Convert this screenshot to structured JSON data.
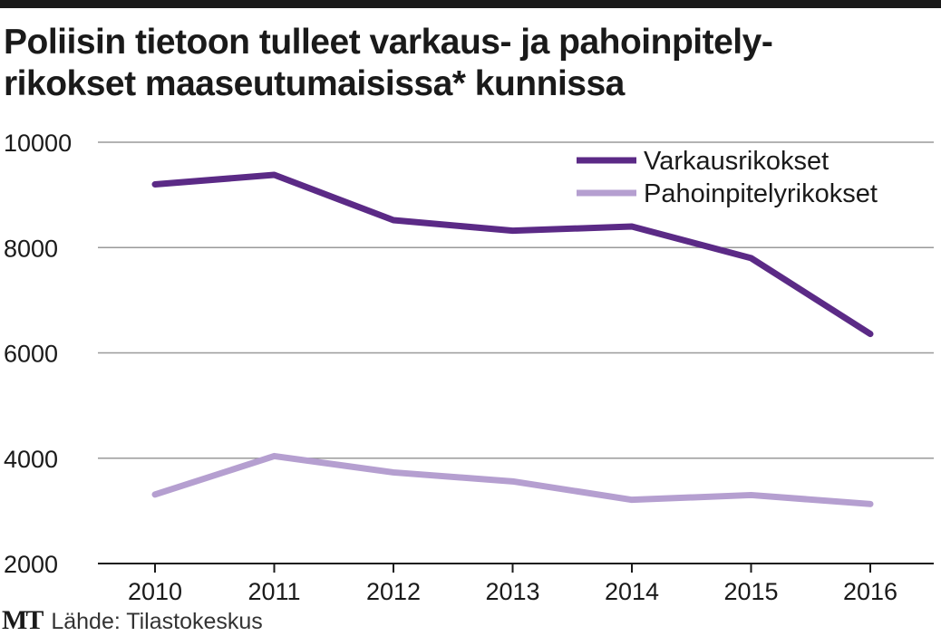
{
  "chart_data": {
    "type": "line",
    "title": "Poliisin tietoon tulleet varkaus- ja pahoinpitelyrikokset maaseutumaisissa* kunnissa",
    "title_lines": [
      "Poliisin tietoon tulleet varkaus- ja pahoinpitely-",
      "rikokset maaseutumaisissa* kunnissa"
    ],
    "xlabel": "",
    "ylabel": "",
    "x": [
      "2010",
      "2011",
      "2012",
      "2013",
      "2014",
      "2015",
      "2016"
    ],
    "ylim": [
      2000,
      10000
    ],
    "yticks": [
      "2000",
      "4000",
      "6000",
      "8000",
      "10000"
    ],
    "grid": true,
    "legend_position": "top-right",
    "series": [
      {
        "name": "Varkausrikokset",
        "color": "#5b2a86",
        "values": [
          9200,
          9380,
          8520,
          8320,
          8400,
          7800,
          6360
        ]
      },
      {
        "name": "Pahoinpitelyrikokset",
        "color": "#b59fd0",
        "values": [
          3310,
          4040,
          3730,
          3560,
          3210,
          3300,
          3130
        ]
      }
    ]
  },
  "footer": {
    "logo": "MT",
    "source": "Lähde: Tilastokeskus"
  }
}
